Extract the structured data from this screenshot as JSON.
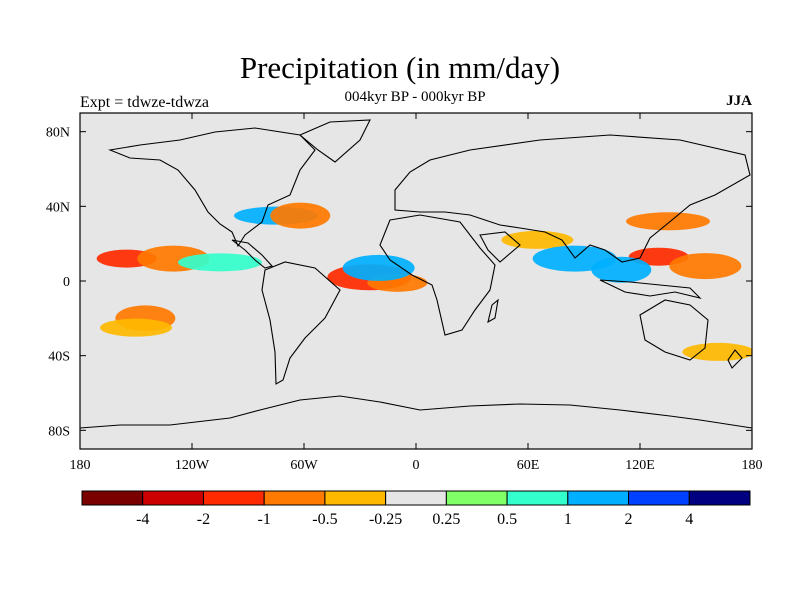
{
  "title": "Precipitation (in mm/day)",
  "subtitle": "004kyr BP - 000kyr BP",
  "left_label": "Expt = tdwze-tdwza",
  "right_label": "JJA",
  "chart_data": {
    "type": "heatmap",
    "title": "Precipitation (in mm/day)",
    "subtitle": "004kyr BP - 000kyr BP",
    "experiment": "Expt = tdwze-tdwza",
    "season": "JJA",
    "x_range": [
      -180,
      180
    ],
    "y_range": [
      -90,
      90
    ],
    "x_ticks": [
      {
        "value": -180,
        "label": "180"
      },
      {
        "value": -120,
        "label": "120W"
      },
      {
        "value": -60,
        "label": "60W"
      },
      {
        "value": 0,
        "label": "0"
      },
      {
        "value": 60,
        "label": "60E"
      },
      {
        "value": 120,
        "label": "120E"
      },
      {
        "value": 180,
        "label": "180"
      }
    ],
    "y_ticks": [
      {
        "value": 80,
        "label": "80N"
      },
      {
        "value": 40,
        "label": "40N"
      },
      {
        "value": 0,
        "label": "0"
      },
      {
        "value": -40,
        "label": "40S"
      },
      {
        "value": -80,
        "label": "80S"
      }
    ],
    "colorbar": {
      "colors": [
        "#7a0000",
        "#cc0000",
        "#ff2a00",
        "#ff7a00",
        "#ffb800",
        "#e6e6e6",
        "#80ff66",
        "#33ffcc",
        "#00b0ff",
        "#0040ff",
        "#000080"
      ],
      "boundaries": [
        "-4",
        "-2",
        "-1",
        "-0.5",
        "-0.25",
        "0.25",
        "0.5",
        "1",
        "2",
        "4"
      ]
    },
    "anomalies": [
      {
        "lon": -155,
        "lat": 12,
        "value": -2
      },
      {
        "lon": -130,
        "lat": 12,
        "value": -1
      },
      {
        "lon": -105,
        "lat": 10,
        "value": 0.5
      },
      {
        "lon": -145,
        "lat": -20,
        "value": -1
      },
      {
        "lon": -150,
        "lat": -25,
        "value": -0.5
      },
      {
        "lon": -25,
        "lat": 2,
        "value": -2
      },
      {
        "lon": -10,
        "lat": -1,
        "value": -1
      },
      {
        "lon": -20,
        "lat": 7,
        "value": 1
      },
      {
        "lon": -75,
        "lat": 35,
        "value": 1
      },
      {
        "lon": -62,
        "lat": 35,
        "value": -1
      },
      {
        "lon": 65,
        "lat": 22,
        "value": -0.5
      },
      {
        "lon": 85,
        "lat": 12,
        "value": 1
      },
      {
        "lon": 130,
        "lat": 13,
        "value": -2
      },
      {
        "lon": 155,
        "lat": 8,
        "value": -1
      },
      {
        "lon": 135,
        "lat": 32,
        "value": -1
      },
      {
        "lon": 110,
        "lat": 6,
        "value": 1
      },
      {
        "lon": 162,
        "lat": -38,
        "value": -0.5
      }
    ]
  }
}
